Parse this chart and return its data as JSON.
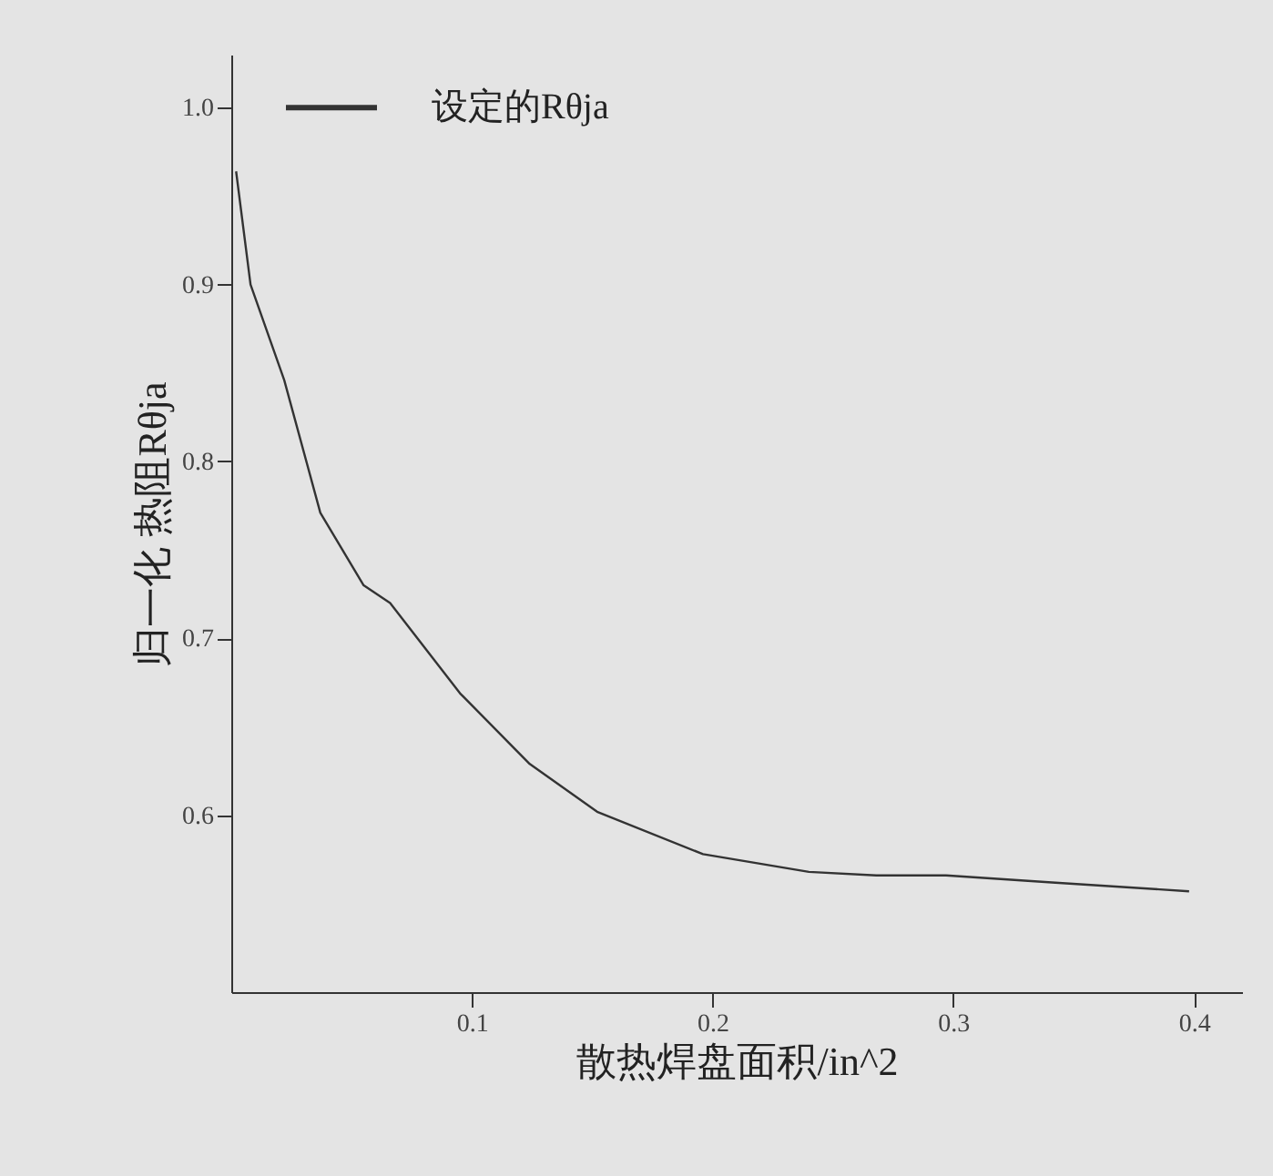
{
  "chart_data": {
    "type": "line",
    "xlabel": "散热焊盘面积/in^2",
    "ylabel": "归一化 热阻Rθja",
    "x": [
      0.002,
      0.008,
      0.022,
      0.037,
      0.055,
      0.066,
      0.095,
      0.124,
      0.152,
      0.196,
      0.24,
      0.268,
      0.297,
      0.341,
      0.398
    ],
    "series": [
      {
        "color": "#333333",
        "values": [
          0.964,
          0.9,
          0.846,
          0.771,
          0.73,
          0.72,
          0.669,
          0.629,
          0.602,
          0.578,
          0.568,
          0.566,
          0.566,
          0.562,
          0.557
        ]
      }
    ],
    "xlim": [
      0,
      0.42
    ],
    "ylim": [
      0.5,
      1.03
    ],
    "xticks": [
      0.1,
      0.2,
      0.3,
      0.4
    ],
    "yticks": [
      0.6,
      0.7,
      0.8,
      0.9,
      {
        "value": 1.0,
        "label": "1.0"
      }
    ],
    "grid": false,
    "marker": "none",
    "line_style": "solid",
    "annotations": [
      "设定的Rθja"
    ]
  }
}
